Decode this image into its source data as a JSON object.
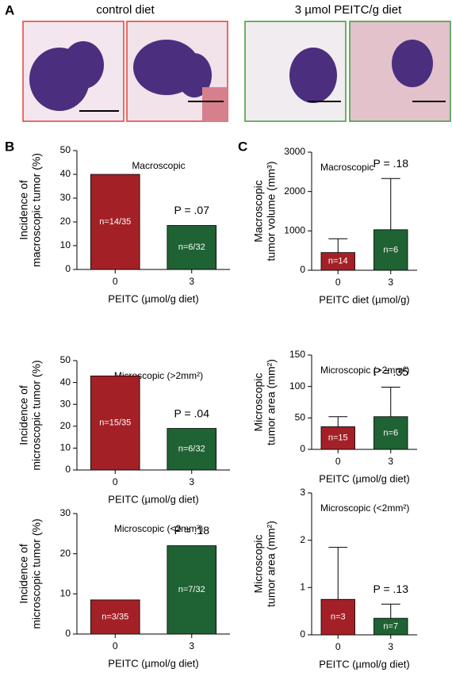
{
  "panel_labels": [
    "A",
    "B",
    "C"
  ],
  "image_captions": [
    "control diet",
    "3 µmol PEITC/g diet"
  ],
  "chart_data": [
    {
      "type": "bar",
      "title": "Macroscopic",
      "ylabel": [
        "Incidence of",
        "macroscopic tumor (%)"
      ],
      "xlabel": "PEITC (µmol/g diet)",
      "categories": [
        "0",
        "3"
      ],
      "values": [
        40,
        18.5
      ],
      "colors": [
        "#a32126",
        "#1f6233"
      ],
      "bar_labels": [
        "n=14/35",
        "n=6/32"
      ],
      "annotation": "P = .07",
      "ylim": [
        0,
        50
      ],
      "yticks": [
        0,
        10,
        20,
        30,
        40,
        50
      ]
    },
    {
      "type": "bar",
      "title": "Microscopic (>2mm²)",
      "ylabel": [
        "Incidence of",
        "microscopic tumor (%)"
      ],
      "xlabel": "PEITC (µmol/g diet)",
      "categories": [
        "0",
        "3"
      ],
      "values": [
        43,
        19
      ],
      "colors": [
        "#a32126",
        "#1f6233"
      ],
      "bar_labels": [
        "n=15/35",
        "n=6/32"
      ],
      "annotation": "P = .04",
      "ylim": [
        0,
        50
      ],
      "yticks": [
        0,
        10,
        20,
        30,
        40,
        50
      ]
    },
    {
      "type": "bar",
      "title": "Microscopic (<2mm²)",
      "ylabel": [
        "Incidence of",
        "microscopic tumor (%)"
      ],
      "xlabel": "PEITC (µmol/g diet)",
      "categories": [
        "0",
        "3"
      ],
      "values": [
        8.5,
        22
      ],
      "colors": [
        "#a32126",
        "#1f6233"
      ],
      "bar_labels": [
        "n=3/35",
        "n=7/32"
      ],
      "annotation": "P = .18",
      "ylim": [
        0,
        30
      ],
      "yticks": [
        0,
        10,
        20,
        30
      ]
    },
    {
      "type": "bar",
      "title": "Macroscopic",
      "ylabel": [
        "Macroscopic",
        "tumor volume (mm³)"
      ],
      "xlabel": "PEITC diet (µmol/g)",
      "categories": [
        "0",
        "3"
      ],
      "values": [
        450,
        1030
      ],
      "errors": [
        350,
        1300
      ],
      "colors": [
        "#a32126",
        "#1f6233"
      ],
      "bar_labels": [
        "n=14",
        "n=6"
      ],
      "annotation": "P = .18",
      "ylim": [
        0,
        3000
      ],
      "yticks": [
        0,
        1000,
        2000,
        3000
      ]
    },
    {
      "type": "bar",
      "title": "Microscopic (>2mm²)",
      "ylabel": [
        "Microscopic",
        "tumor area (mm²)"
      ],
      "xlabel": "PEITC (µmol/g diet)",
      "categories": [
        "0",
        "3"
      ],
      "values": [
        36,
        52
      ],
      "errors": [
        16,
        47
      ],
      "colors": [
        "#a32126",
        "#1f6233"
      ],
      "bar_labels": [
        "n=15",
        "n=6"
      ],
      "annotation": "P = .35",
      "ylim": [
        0,
        150
      ],
      "yticks": [
        0,
        50,
        100,
        150
      ]
    },
    {
      "type": "bar",
      "title": "Microscopic (<2mm²)",
      "ylabel": [
        "Microscopic",
        "tumor area (mm²)"
      ],
      "xlabel": "PEITC (µmol/g diet)",
      "categories": [
        "0",
        "3"
      ],
      "values": [
        0.75,
        0.35
      ],
      "errors": [
        1.1,
        0.3
      ],
      "colors": [
        "#a32126",
        "#1f6233"
      ],
      "bar_labels": [
        "n=3",
        "n=7"
      ],
      "annotation": "P = .13",
      "ylim": [
        0,
        3
      ],
      "yticks": [
        0,
        1,
        2,
        3
      ]
    }
  ]
}
